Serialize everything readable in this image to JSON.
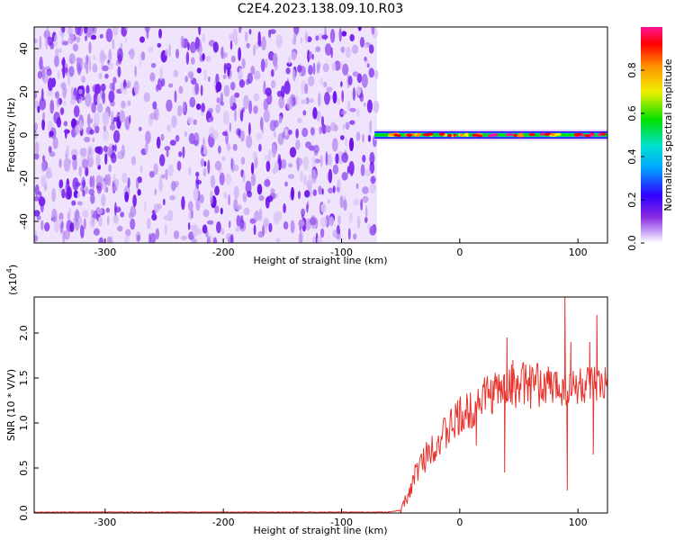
{
  "title": "C2E4.2023.138.09.10.R03",
  "colors": {
    "noise": "#7a22ee",
    "snr_line": "#e8322c",
    "colormap": [
      "#ffffff",
      "#8a2be2",
      "#3000ff",
      "#00a8ff",
      "#00e0d0",
      "#00e000",
      "#f0f000",
      "#ff9000",
      "#ff0000",
      "#ff1493"
    ]
  },
  "chart_data": [
    {
      "type": "heatmap",
      "xlabel": "Height of straight line (km)",
      "ylabel": "Frequency (Hz)",
      "xlim": [
        -360,
        125
      ],
      "ylim": [
        -50,
        50
      ],
      "xticks": [
        "-300",
        "-200",
        "-100",
        "0",
        "100"
      ],
      "yticks": [
        "-40",
        "-20",
        "0",
        "20",
        "40"
      ],
      "noise_region_x": [
        -360,
        -70
      ],
      "signal_start_x": -72,
      "signal_frequency_hz": 0,
      "colorbar": {
        "label": "Normalized spectral amplitude",
        "range": [
          0.0,
          1.0
        ],
        "ticks": [
          "0.0",
          "0.2",
          "0.4",
          "0.6",
          "0.8"
        ]
      }
    },
    {
      "type": "line",
      "xlabel": "Height of straight line (km)",
      "ylabel": "SNR (10 * V/V)",
      "exponent_label": "(x10",
      "exponent_sup": "4",
      "exponent_close": ")",
      "xlim": [
        -360,
        125
      ],
      "ylim": [
        0,
        2.4
      ],
      "xticks": [
        "-300",
        "-200",
        "-100",
        "0",
        "100"
      ],
      "yticks": [
        "0.0",
        "0.5",
        "1.0",
        "1.5",
        "2.0"
      ],
      "series": [
        {
          "x": [
            -360,
            -60,
            -50,
            -45,
            -40,
            -35,
            -30,
            -25,
            -20,
            -15,
            -10,
            -5,
            0,
            5,
            10,
            15,
            20,
            25,
            30,
            35,
            40,
            45,
            50,
            55,
            60,
            65,
            70,
            75,
            80,
            85,
            90,
            95,
            100,
            105,
            110,
            115,
            120,
            125
          ],
          "y": [
            0.01,
            0.01,
            0.03,
            0.15,
            0.35,
            0.5,
            0.6,
            0.72,
            0.78,
            0.85,
            0.9,
            1.0,
            1.05,
            1.1,
            1.15,
            1.25,
            1.3,
            1.32,
            1.35,
            1.38,
            1.4,
            1.42,
            1.4,
            1.45,
            1.4,
            1.43,
            1.4,
            1.42,
            1.38,
            1.44,
            1.4,
            1.38,
            1.42,
            1.4,
            1.38,
            1.39,
            1.38,
            1.38
          ]
        }
      ],
      "spikes": [
        {
          "x": 40,
          "y": 1.95
        },
        {
          "x": 45,
          "y": 1.7
        },
        {
          "x": 89,
          "y": 2.4
        },
        {
          "x": 91,
          "y": 0.25
        },
        {
          "x": 94,
          "y": 1.9
        },
        {
          "x": 110,
          "y": 1.9
        },
        {
          "x": 113,
          "y": 0.65
        },
        {
          "x": 116,
          "y": 2.2
        },
        {
          "x": 38,
          "y": 0.45
        },
        {
          "x": 14,
          "y": 0.75
        }
      ]
    }
  ]
}
